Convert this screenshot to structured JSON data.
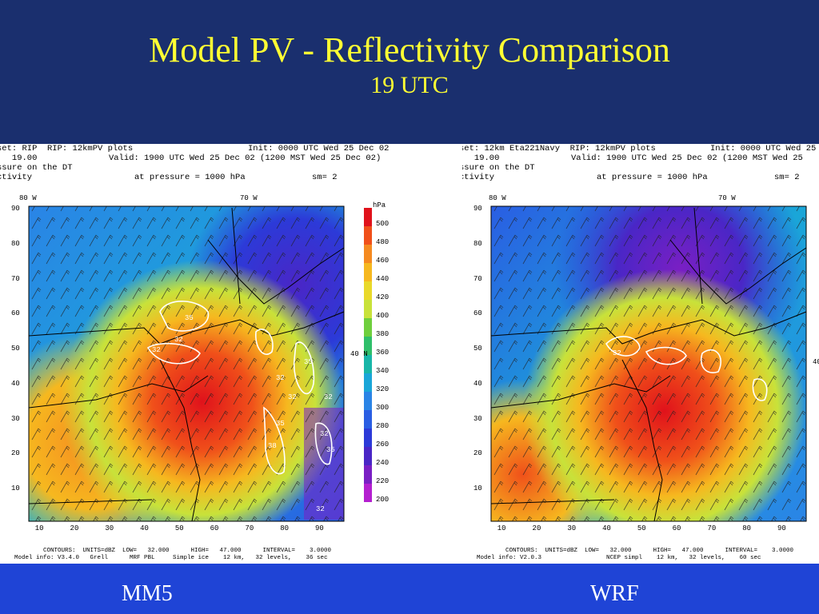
{
  "slide": {
    "title": "Model PV - Reflectivity Comparison",
    "subtitle": "19 UTC"
  },
  "colors": {
    "background": "#1a2f6e",
    "title": "#ffff33",
    "bottom_band": "#1f44d6",
    "label": "#ffffff"
  },
  "colorbar": {
    "unit": "hPa",
    "levels": [
      "500",
      "480",
      "460",
      "440",
      "420",
      "400",
      "380",
      "360",
      "340",
      "320",
      "300",
      "280",
      "260",
      "240",
      "220",
      "200"
    ],
    "colors": [
      "#e0121b",
      "#f0501a",
      "#f58a20",
      "#f6b81f",
      "#e9d92a",
      "#c8e23a",
      "#6fcf3d",
      "#2fbf6a",
      "#18b6a8",
      "#1aa6d8",
      "#2a84e6",
      "#2a5ee3",
      "#2c3ad8",
      "#4a26c6",
      "#7a1fc4",
      "#b41fd0"
    ]
  },
  "panels": [
    {
      "label": "MM5",
      "header": {
        "line1_left": "set: RIP  RIP: 12kmPV plots",
        "line1_right": "Init: 0000 UTC Wed 25 Dec 02",
        "line2_left": "   19.00",
        "line2_right": "Valid: 1900 UTC Wed 25 Dec 02 (1200 MST Wed 25 Dec 02)",
        "line3": "ssure on the DT",
        "line4_left": "ctivity",
        "line4_mid": "at pressure = 1000 hPa",
        "line4_right": "sm= 2"
      },
      "lon_labels": [
        "80 W",
        "70 W"
      ],
      "lat_label": "40 N",
      "x_ticks": [
        "10",
        "20",
        "30",
        "40",
        "50",
        "60",
        "70",
        "80",
        "90"
      ],
      "y_ticks": [
        "90",
        "80",
        "70",
        "60",
        "50",
        "40",
        "30",
        "20",
        "10"
      ],
      "contour_labels": [
        "35",
        "32",
        "32",
        "32",
        "35",
        "32",
        "32",
        "35",
        "38",
        "32",
        "35",
        "32"
      ],
      "footer": {
        "line1": "CONTOURS:  UNITS=dBZ  LOW=   32.000      HIGH=   47.000      INTERVAL=    3.0000",
        "line2": "Model info: V3.4.0   Grell      MRF PBL     Simple ice    12 km,   32 levels,    36 sec"
      }
    },
    {
      "label": "WRF",
      "header": {
        "line1_left": "set: 12km Eta221Navy  RIP: 12kmPV plots",
        "line1_right": "Init: 0000 UTC Wed 25",
        "line2_left": "   19.00",
        "line2_right": "Valid: 1900 UTC Wed 25 Dec 02 (1200 MST Wed 25",
        "line3": "ssure on the DT",
        "line4_left": "ctivity",
        "line4_mid": "at pressure = 1000 hPa",
        "line4_right": "sm= 2"
      },
      "lon_labels": [
        "80 W",
        "70 W"
      ],
      "lat_label": "40",
      "x_ticks": [
        "10",
        "20",
        "30",
        "40",
        "50",
        "60",
        "70",
        "80",
        "90"
      ],
      "y_ticks": [
        "90",
        "80",
        "70",
        "60",
        "50",
        "40",
        "30",
        "20",
        "10"
      ],
      "contour_labels": [
        "32"
      ],
      "footer": {
        "line1": "CONTOURS:  UNITS=dBZ  LOW=   32.000      HIGH=   47.000      INTERVAL=    3.0000",
        "line2": "Model info: V2.0.3                  NCEP simpl    12 km,   32 levels,    60 sec"
      }
    }
  ]
}
